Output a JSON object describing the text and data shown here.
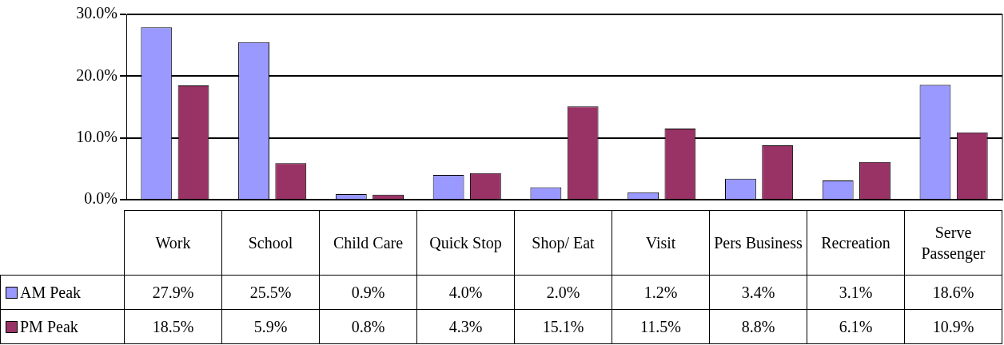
{
  "chart_data": {
    "type": "bar",
    "categories": [
      "Work",
      "School",
      "Child Care",
      "Quick Stop",
      "Shop/ Eat",
      "Visit",
      "Pers Business",
      "Recreation",
      "Serve Passenger"
    ],
    "series": [
      {
        "name": "AM Peak",
        "color": "#9999ff",
        "values": [
          27.9,
          25.5,
          0.9,
          4.0,
          2.0,
          1.2,
          3.4,
          3.1,
          18.6
        ],
        "value_labels": [
          "27.9%",
          "25.5%",
          "0.9%",
          "4.0%",
          "2.0%",
          "1.2%",
          "3.4%",
          "3.1%",
          "18.6%"
        ]
      },
      {
        "name": "PM Peak",
        "color": "#993366",
        "values": [
          18.5,
          5.9,
          0.8,
          4.3,
          15.1,
          11.5,
          8.8,
          6.1,
          10.9
        ],
        "value_labels": [
          "18.5%",
          "5.9%",
          "0.8%",
          "4.3%",
          "15.1%",
          "11.5%",
          "8.8%",
          "6.1%",
          "10.9%"
        ]
      }
    ],
    "ylim": [
      0,
      30
    ],
    "yticks": [
      {
        "value": 0,
        "label": "0.0%"
      },
      {
        "value": 10,
        "label": "10.0%"
      },
      {
        "value": 20,
        "label": "20.0%"
      },
      {
        "value": 30,
        "label": "30.0%"
      }
    ],
    "grid": "y",
    "legend": "bottom"
  }
}
